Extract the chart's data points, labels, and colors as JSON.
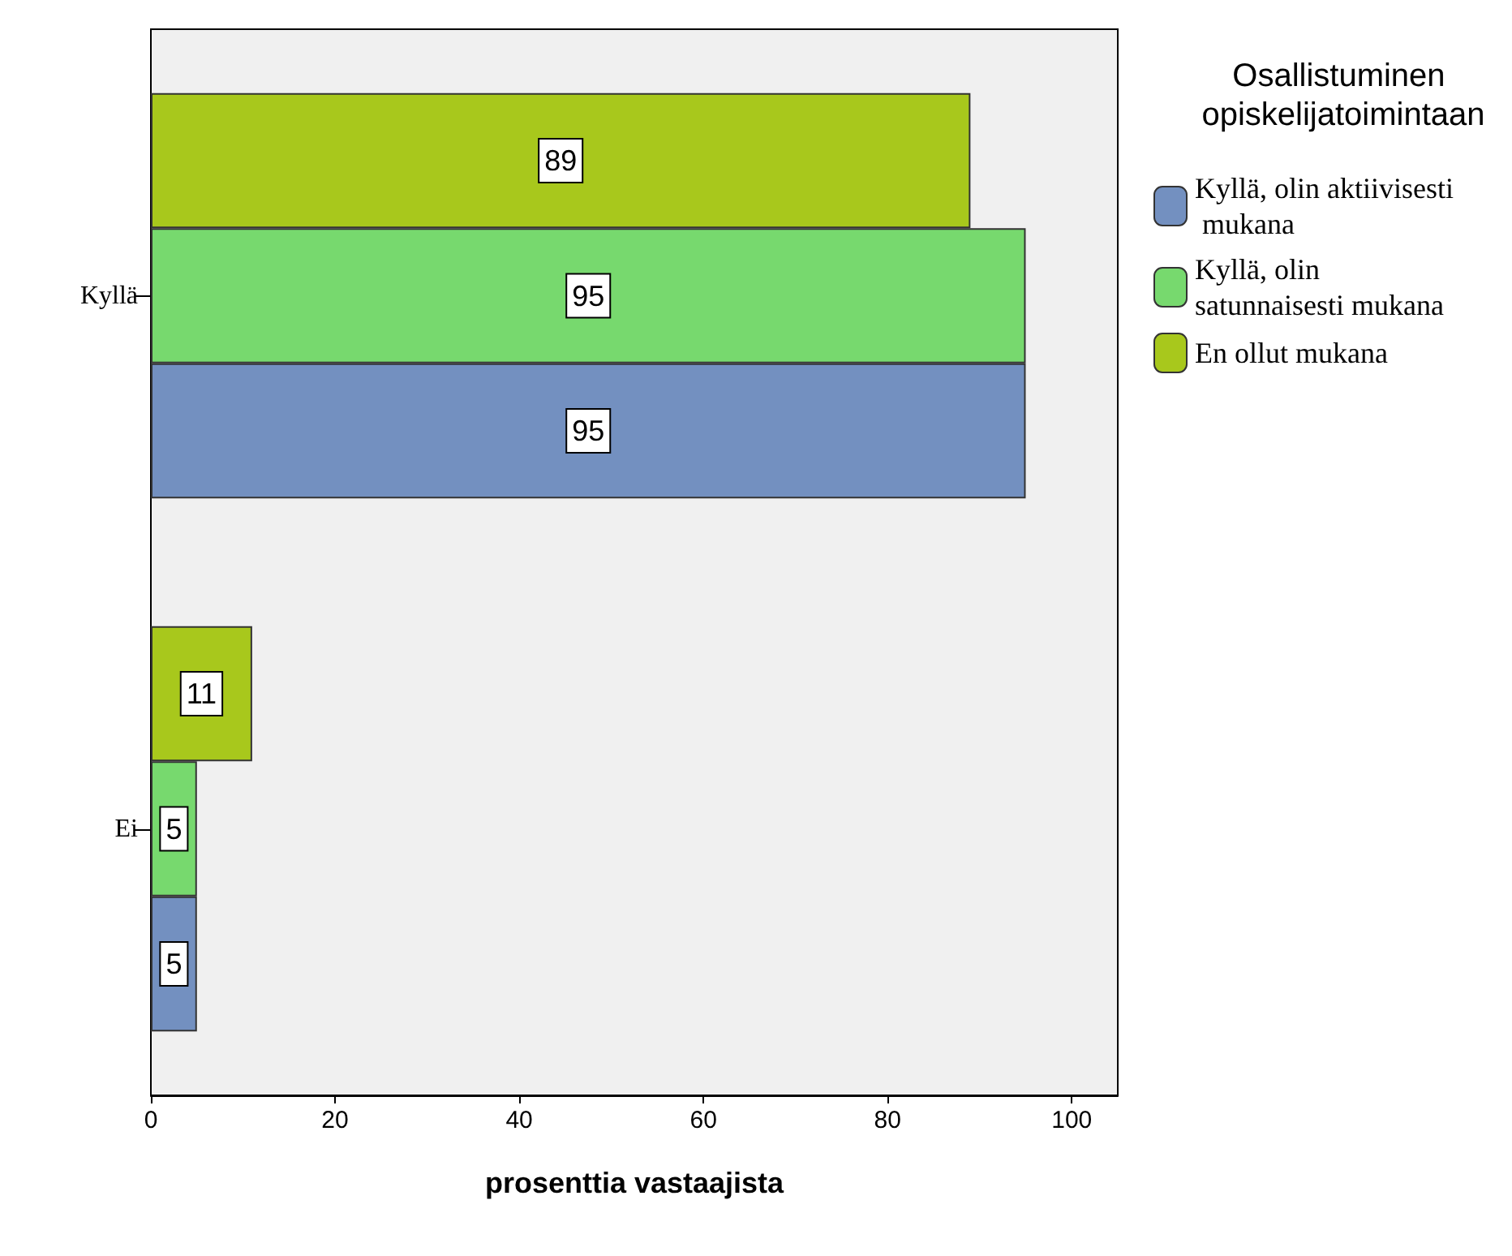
{
  "chart_data": {
    "type": "bar",
    "orientation": "horizontal",
    "xlabel": "prosenttia vastaajista",
    "legend_title": "Osallistuminen opiskelijatoimintaan",
    "categories": [
      "Kyllä",
      "Ei"
    ],
    "series": [
      {
        "name": "Kyllä, olin aktiivisesti mukana",
        "color": "#7390c0",
        "values": [
          95,
          5
        ]
      },
      {
        "name": "Kyllä, olin satunnaisesti mukana",
        "color": "#77d96e",
        "values": [
          95,
          5
        ]
      },
      {
        "name": "En ollut mukana",
        "color": "#a8c81c",
        "values": [
          89,
          11
        ]
      }
    ],
    "xlim": [
      0,
      105
    ],
    "xticks": [
      0,
      20,
      40,
      60,
      80,
      100
    ],
    "data_labels": true,
    "legend": "right",
    "grid": false
  }
}
